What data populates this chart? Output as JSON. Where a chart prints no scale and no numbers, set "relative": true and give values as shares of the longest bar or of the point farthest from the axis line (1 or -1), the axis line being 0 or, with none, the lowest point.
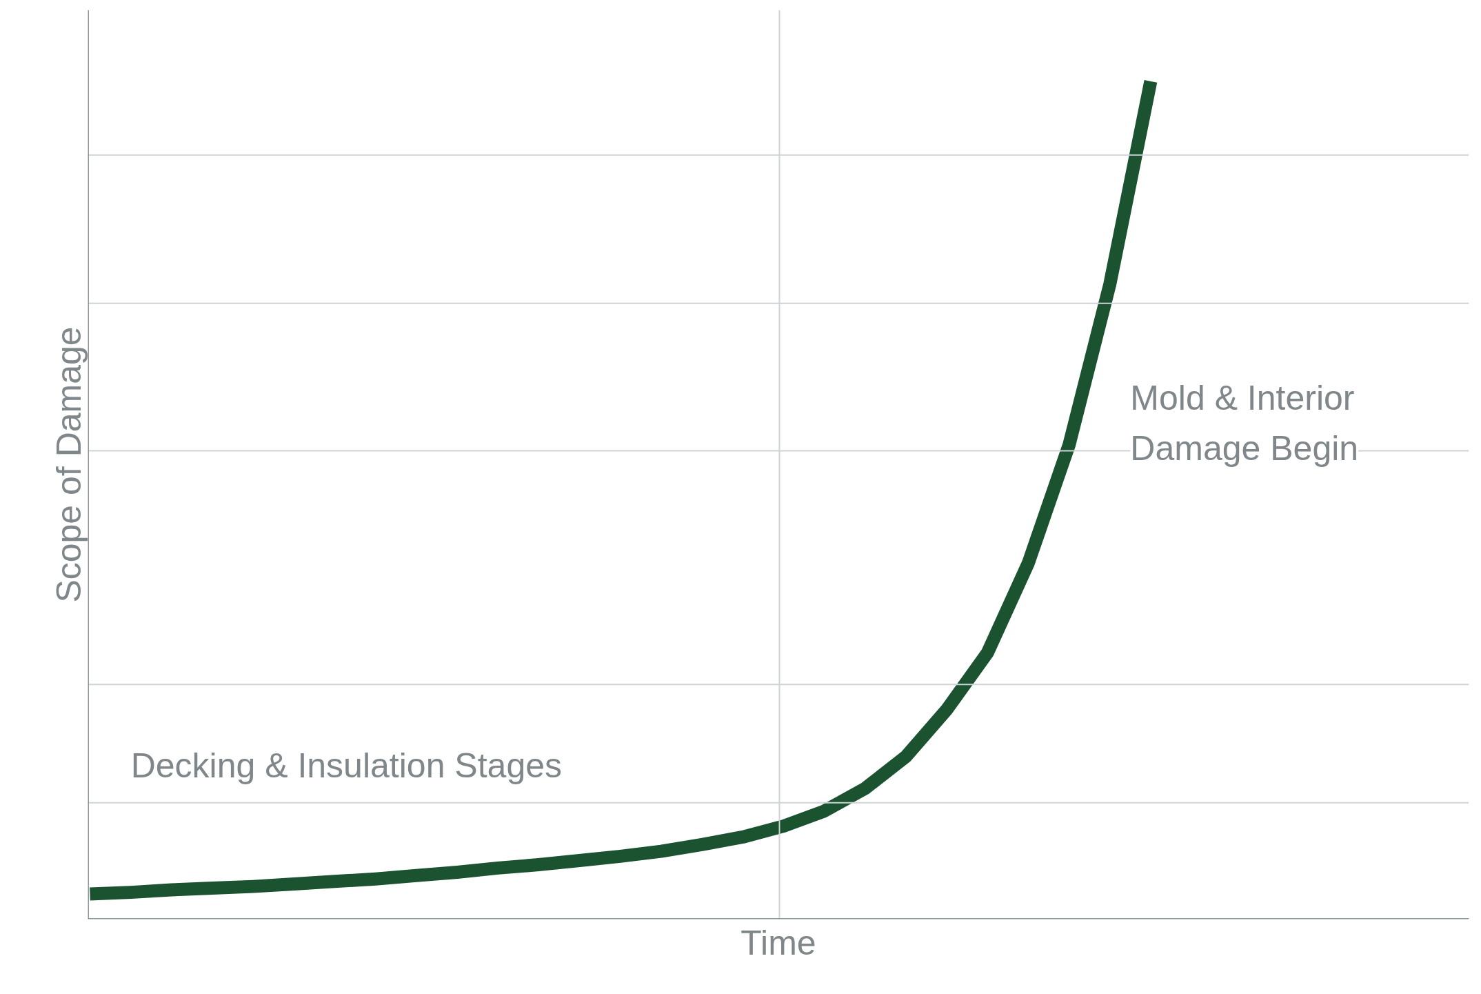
{
  "chart_data": {
    "type": "line",
    "relative": true,
    "xlabel": "Time",
    "ylabel": "Scope of Damage",
    "categories": [
      null,
      null,
      null,
      null,
      null,
      null,
      null,
      null,
      null,
      null,
      null,
      null,
      null,
      null,
      null,
      null,
      null,
      null,
      null,
      null,
      null,
      null,
      null,
      null,
      null,
      null,
      null
    ],
    "series": [
      {
        "color": "#1b5230",
        "values": [
          0.03,
          0.032,
          0.035,
          0.037,
          0.039,
          0.042,
          0.045,
          0.048,
          0.052,
          0.056,
          0.061,
          0.065,
          0.07,
          0.075,
          0.081,
          0.089,
          0.098,
          0.111,
          0.129,
          0.156,
          0.194,
          0.25,
          0.318,
          0.425,
          0.566,
          0.758,
          1.0
        ]
      }
    ],
    "ref_lines": [
      {
        "axis": "y",
        "value": 0.139,
        "color": "#cdd3d6"
      },
      {
        "axis": "y",
        "value": 0.28,
        "color": "#cdd3d6"
      },
      {
        "axis": "y",
        "value": 0.559,
        "color": "#cdd3d6"
      },
      {
        "axis": "y",
        "value": 0.735,
        "color": "#cdd3d6"
      },
      {
        "axis": "y",
        "value": 0.912,
        "color": "#cdd3d6"
      }
    ],
    "annotations": [
      "Decking & Insulation Stages",
      "Mold & Interior\nDamage Begin"
    ],
    "grid": false,
    "marker": "none",
    "line_style": "solid"
  }
}
